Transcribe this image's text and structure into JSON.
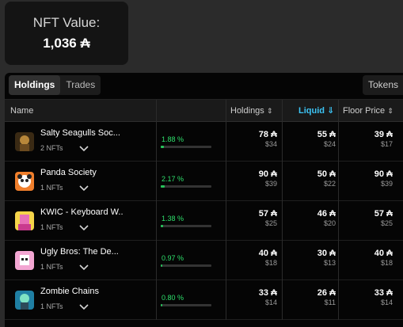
{
  "summary": {
    "label": "NFT Value:",
    "value": "1,036 ₳"
  },
  "tabs": {
    "holdings": "Holdings",
    "trades": "Trades",
    "tokens": "Tokens"
  },
  "columns": {
    "name": "Name",
    "holdings": "Holdings",
    "liquid": "Liquid",
    "floor": "Floor Price"
  },
  "rows": [
    {
      "name": "Salty Seagulls Soc...",
      "count": "2 NFTs",
      "pct": "1.88 %",
      "share": 1.88,
      "hold": "78 ₳",
      "hold_usd": "$34",
      "liq": "55 ₳",
      "liq_usd": "$24",
      "floor": "39 ₳",
      "floor_usd": "$17"
    },
    {
      "name": "Panda Society",
      "count": "1 NFTs",
      "pct": "2.17 %",
      "share": 2.17,
      "hold": "90 ₳",
      "hold_usd": "$39",
      "liq": "50 ₳",
      "liq_usd": "$22",
      "floor": "90 ₳",
      "floor_usd": "$39"
    },
    {
      "name": "KWIC - Keyboard W...",
      "count": "1 NFTs",
      "pct": "1.38 %",
      "share": 1.38,
      "hold": "57 ₳",
      "hold_usd": "$25",
      "liq": "46 ₳",
      "liq_usd": "$20",
      "floor": "57 ₳",
      "floor_usd": "$25"
    },
    {
      "name": "Ugly Bros: The De...",
      "count": "1 NFTs",
      "pct": "0.97 %",
      "share": 0.97,
      "hold": "40 ₳",
      "hold_usd": "$18",
      "liq": "30 ₳",
      "liq_usd": "$13",
      "floor": "40 ₳",
      "floor_usd": "$18"
    },
    {
      "name": "Zombie Chains",
      "count": "1 NFTs",
      "pct": "0.80 %",
      "share": 0.8,
      "hold": "33 ₳",
      "hold_usd": "$14",
      "liq": "26 ₳",
      "liq_usd": "$11",
      "floor": "33 ₳",
      "floor_usd": "$14"
    }
  ],
  "colors": {
    "accent": "#3cc4f5",
    "positive": "#2ee06c"
  }
}
